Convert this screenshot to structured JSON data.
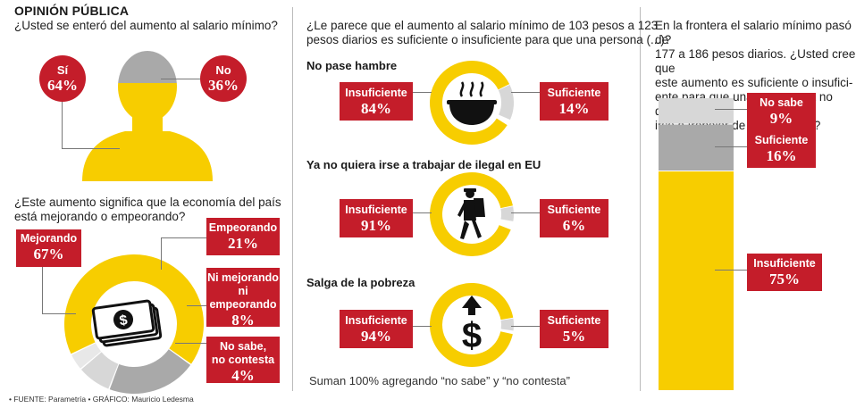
{
  "header": {
    "title": "OPINIÓN PÚBLICA"
  },
  "q1": {
    "question": "¿Usted se enteró del aumento al salario mínimo?",
    "yes_label": "Sí",
    "yes_pct": "64%",
    "no_label": "No",
    "no_pct": "36%"
  },
  "q2": {
    "question_line1": "¿Este aumento significa que la economía del país",
    "question_line2": "está mejorando o empeorando?",
    "labels": [
      {
        "label": "Mejorando",
        "pct": "67%"
      },
      {
        "label": "Empeorando",
        "pct": "21%"
      },
      {
        "label_lines": [
          "Ni mejorando",
          "ni",
          "empeorando"
        ],
        "pct": "8%"
      },
      {
        "label_lines": [
          "No sabe,",
          "no contesta"
        ],
        "pct": "4%"
      }
    ]
  },
  "q3": {
    "question_line1": "¿Le parece que el aumento al salario mínimo de 103 pesos a 123",
    "question_line2": "pesos diarios es suficiente o insuficiente para que una persona (...)?",
    "items": [
      {
        "subtitle": "No pase hambre",
        "insuf_label": "Insuficiente",
        "insuf_pct": "84%",
        "suf_label": "Suficiente",
        "suf_pct": "14%"
      },
      {
        "subtitle": "Ya no quiera irse a trabajar de ilegal en EU",
        "insuf_label": "Insuficiente",
        "insuf_pct": "91%",
        "suf_label": "Suficiente",
        "suf_pct": "6%"
      },
      {
        "subtitle": "Salga de la pobreza",
        "insuf_label": "Insuficiente",
        "insuf_pct": "94%",
        "suf_label": "Suficiente",
        "suf_pct": "5%"
      }
    ],
    "note": "Suman 100% agregando “no sabe” y “no contesta”"
  },
  "q4": {
    "question_lines": [
      "En la frontera el salario mínimo pasó de",
      "177 a 186 pesos diarios. ¿Usted cree que",
      "este aumento es suficiente o insufici-",
      "ente para que una persona ya no quiera",
      "irse a trabajar de ilegal en EU?"
    ],
    "items": [
      {
        "label": "No sabe",
        "pct": "9%"
      },
      {
        "label": "Suficiente",
        "pct": "16%"
      },
      {
        "label": "Insuficiente",
        "pct": "75%"
      }
    ]
  },
  "footer": {
    "source": "• FUENTE: Parametría • GRÁFICO: Mauricio Ledesma"
  },
  "colors": {
    "red": "#c41d2a",
    "yellow": "#f7cd00",
    "gray": "#a9a9a9",
    "lightgray": "#d7d7d7",
    "darkgray": "#555555"
  },
  "chart_data": [
    {
      "type": "pie",
      "title": "¿Usted se enteró del aumento al salario mínimo?",
      "categories": [
        "Sí",
        "No"
      ],
      "values": [
        64,
        36
      ]
    },
    {
      "type": "pie",
      "title": "¿Este aumento significa que la economía del país está mejorando o empeorando?",
      "categories": [
        "Mejorando",
        "Empeorando",
        "Ni mejorando ni empeorando",
        "No sabe, no contesta"
      ],
      "values": [
        67,
        21,
        8,
        4
      ]
    },
    {
      "type": "pie",
      "title": "No pase hambre",
      "categories": [
        "Insuficiente",
        "Suficiente"
      ],
      "values": [
        84,
        14
      ]
    },
    {
      "type": "pie",
      "title": "Ya no quiera irse a trabajar de ilegal en EU",
      "categories": [
        "Insuficiente",
        "Suficiente"
      ],
      "values": [
        91,
        6
      ]
    },
    {
      "type": "pie",
      "title": "Salga de la pobreza",
      "categories": [
        "Insuficiente",
        "Suficiente"
      ],
      "values": [
        94,
        5
      ]
    },
    {
      "type": "bar",
      "title": "En la frontera el salario mínimo pasó de 177 a 186 pesos diarios. ¿Usted cree que este aumento es suficiente o insuficiente para que una persona ya no quiera irse a trabajar de ilegal en EU?",
      "categories": [
        "Insuficiente",
        "Suficiente",
        "No sabe"
      ],
      "values": [
        75,
        16,
        9
      ]
    }
  ]
}
